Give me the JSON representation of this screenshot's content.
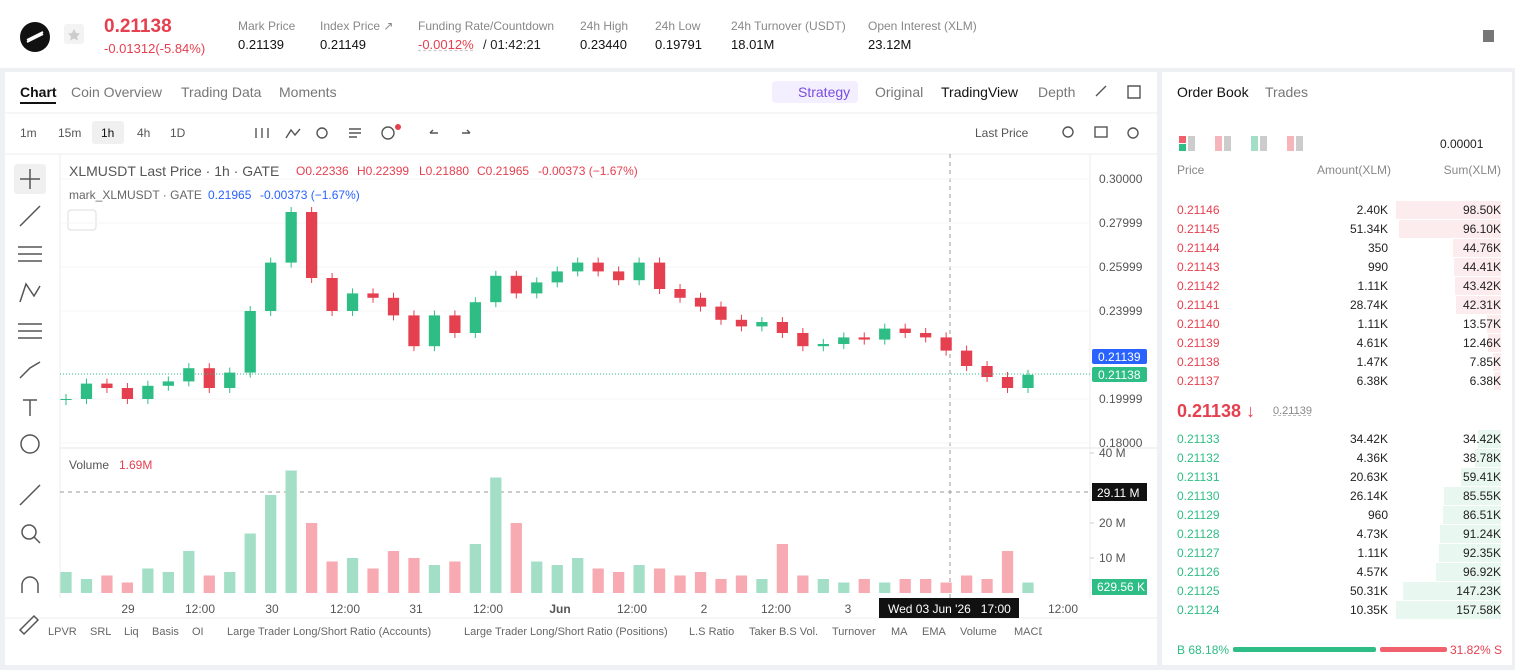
{
  "header": {
    "price": "0.21138",
    "change": "-0.01312(-5.84%)",
    "stats": [
      {
        "label": "Mark Price",
        "value": "0.21139"
      },
      {
        "label": "Index Price ↗",
        "value": "0.21149"
      },
      {
        "label": "Funding Rate/Countdown",
        "value": "-0.0012%",
        "extra": "/ 01:42:21"
      },
      {
        "label": "24h High",
        "value": "0.23440"
      },
      {
        "label": "24h Low",
        "value": "0.19791"
      },
      {
        "label": "24h Turnover (USDT)",
        "value": "18.01M"
      },
      {
        "label": "Open Interest (XLM)",
        "value": "23.12M"
      }
    ]
  },
  "tabs": [
    "Chart",
    "Coin Overview",
    "Trading Data",
    "Moments"
  ],
  "views": [
    "Strategy",
    "Original",
    "TradingView",
    "Depth"
  ],
  "intervals": [
    "1m",
    "15m",
    "1h",
    "4h",
    "1D"
  ],
  "price_type": "Last Price",
  "legend": {
    "title": "XLMUSDT Last Price · 1h · GATE",
    "ohlc": [
      "O0.22336",
      "H0.22399",
      "L0.21880",
      "C0.21965",
      "-0.00373 (−1.67%)"
    ],
    "mark": "mark_XLMUSDT · GATE",
    "mark_value": "0.21965",
    "mark_change": "-0.00373 (−1.67%)"
  },
  "chart": {
    "ylim": [
      0.18,
      0.3
    ],
    "yticks": [
      {
        "value": 0.3,
        "label": "0.30000"
      },
      {
        "value": 0.27999,
        "label": "0.27999"
      },
      {
        "value": 0.25999,
        "label": "0.25999"
      },
      {
        "value": 0.23999,
        "label": "0.23999"
      },
      {
        "value": 0.19999,
        "label": "0.19999"
      },
      {
        "value": 0.18,
        "label": "0.18000"
      }
    ],
    "closes": [
      0.2,
      0.207,
      0.205,
      0.2,
      0.206,
      0.208,
      0.214,
      0.205,
      0.212,
      0.24,
      0.262,
      0.285,
      0.255,
      0.24,
      0.248,
      0.246,
      0.238,
      0.224,
      0.238,
      0.23,
      0.244,
      0.256,
      0.248,
      0.253,
      0.258,
      0.262,
      0.258,
      0.254,
      0.262,
      0.25,
      0.246,
      0.242,
      0.236,
      0.233,
      0.235,
      0.23,
      0.224,
      0.225,
      0.228,
      0.227,
      0.232,
      0.23,
      0.228,
      0.222,
      0.215,
      0.21,
      0.205,
      0.211
    ],
    "mark_tag": "0.21139",
    "last_tag": "0.21138",
    "volume_label": "Volume",
    "volume_value": "1.69M",
    "vlim": [
      0,
      40
    ],
    "vticks": [
      {
        "value": 40,
        "label": "40 M"
      },
      {
        "value": 20,
        "label": "20 M"
      },
      {
        "value": 10,
        "label": "10 M"
      }
    ],
    "volumes": [
      6,
      4,
      5,
      3,
      7,
      6,
      12,
      5,
      6,
      17,
      28,
      35,
      20,
      9,
      10,
      7,
      12,
      10,
      8,
      9,
      14,
      33,
      20,
      9,
      8,
      10,
      7,
      6,
      8,
      7,
      5,
      6,
      4,
      5,
      4,
      14,
      5,
      4,
      3,
      4,
      3,
      4,
      4,
      3,
      5,
      4,
      12,
      3
    ],
    "cross_tag": "29.11 M",
    "volume_tag": "629.56 K",
    "xlabels": [
      "29",
      "12:00",
      "30",
      "12:00",
      "31",
      "12:00",
      "Jun",
      "12:00",
      "2",
      "12:00",
      "3",
      "12:00"
    ],
    "cross_time": "Wed 03 Jun '26   17:00"
  },
  "indicators": [
    "LPVR",
    "SRL",
    "Liq",
    "Basis",
    "OI",
    "Large Trader Long/Short Ratio (Accounts)",
    "Large Trader Long/Short Ratio (Positions)",
    "L.S Ratio",
    "Taker B.S Vol.",
    "Turnover",
    "MA",
    "EMA",
    "Volume",
    "MACD"
  ],
  "orderbook": {
    "tabs": [
      "Order Book",
      "Trades"
    ],
    "precision": "0.00001",
    "columns": [
      "Price",
      "Amount(XLM)",
      "Sum(XLM)"
    ],
    "asks": [
      [
        "0.21146",
        "2.40K",
        "98.50K"
      ],
      [
        "0.21145",
        "51.34K",
        "96.10K"
      ],
      [
        "0.21144",
        "350",
        "44.76K"
      ],
      [
        "0.21143",
        "990",
        "44.41K"
      ],
      [
        "0.21142",
        "1.11K",
        "43.42K"
      ],
      [
        "0.21141",
        "28.74K",
        "42.31K"
      ],
      [
        "0.21140",
        "1.11K",
        "13.57K"
      ],
      [
        "0.21139",
        "4.61K",
        "12.46K"
      ],
      [
        "0.21138",
        "1.47K",
        "7.85K"
      ],
      [
        "0.21137",
        "6.38K",
        "6.38K"
      ]
    ],
    "mid": "0.21138 ↓",
    "mid_mark": "0.21139",
    "bids": [
      [
        "0.21133",
        "34.42K",
        "34.42K"
      ],
      [
        "0.21132",
        "4.36K",
        "38.78K"
      ],
      [
        "0.21131",
        "20.63K",
        "59.41K"
      ],
      [
        "0.21130",
        "26.14K",
        "85.55K"
      ],
      [
        "0.21129",
        "960",
        "86.51K"
      ],
      [
        "0.21128",
        "4.73K",
        "91.24K"
      ],
      [
        "0.21127",
        "1.11K",
        "92.35K"
      ],
      [
        "0.21126",
        "4.57K",
        "96.92K"
      ],
      [
        "0.21125",
        "50.31K",
        "147.23K"
      ],
      [
        "0.21124",
        "10.35K",
        "157.58K"
      ]
    ],
    "buy": "B 68.18%",
    "sell": "31.82% S"
  }
}
